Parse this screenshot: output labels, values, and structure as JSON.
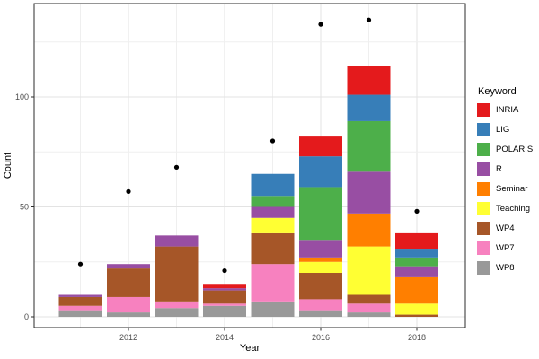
{
  "chart_data": {
    "type": "bar",
    "subtype": "stacked-bars-with-scatter-overlay",
    "title": "",
    "xlabel": "Year",
    "ylabel": "Count",
    "legend_title": "Keyword",
    "legend_position": "right",
    "grid": true,
    "background": "#ffffff",
    "categories": [
      2011,
      2012,
      2013,
      2014,
      2015,
      2016,
      2017,
      2018
    ],
    "x_tick_labels": [
      "2012",
      "2014",
      "2016",
      "2018"
    ],
    "y_ticks": [
      0,
      50,
      100
    ],
    "y_minor_ticks": [
      25,
      75,
      125
    ],
    "ylim": [
      -5,
      142
    ],
    "stack_order": "last-series-at-bottom",
    "series": [
      {
        "name": "INRIA",
        "color": "#e41a1c",
        "values": [
          0,
          0,
          0,
          2,
          0,
          9,
          13,
          7
        ]
      },
      {
        "name": "LIG",
        "color": "#377eb8",
        "values": [
          0,
          0,
          0,
          0,
          10,
          14,
          12,
          4
        ]
      },
      {
        "name": "POLARIS",
        "color": "#4daf4a",
        "values": [
          0,
          0,
          0,
          0,
          5,
          24,
          23,
          4
        ]
      },
      {
        "name": "R",
        "color": "#984ea3",
        "values": [
          1,
          2,
          5,
          1,
          5,
          8,
          19,
          5
        ]
      },
      {
        "name": "Seminar",
        "color": "#ff7f00",
        "values": [
          0,
          0,
          0,
          0,
          0,
          2,
          15,
          12
        ]
      },
      {
        "name": "Teaching",
        "color": "#ffff33",
        "values": [
          0,
          0,
          0,
          0,
          7,
          5,
          22,
          5
        ]
      },
      {
        "name": "WP4",
        "color": "#a65628",
        "values": [
          4,
          13,
          25,
          6,
          14,
          12,
          4,
          1
        ]
      },
      {
        "name": "WP7",
        "color": "#f781bf",
        "values": [
          2,
          7,
          3,
          1,
          17,
          5,
          4,
          0
        ]
      },
      {
        "name": "WP8",
        "color": "#999999",
        "values": [
          3,
          2,
          4,
          5,
          7,
          3,
          2,
          0
        ]
      }
    ],
    "bar_totals": [
      10,
      24,
      37,
      15,
      65,
      82,
      114,
      38
    ],
    "points": {
      "name": "yearly-point-markers",
      "color": "#000000",
      "values": [
        24,
        57,
        68,
        21,
        80,
        133,
        135,
        48
      ]
    }
  }
}
